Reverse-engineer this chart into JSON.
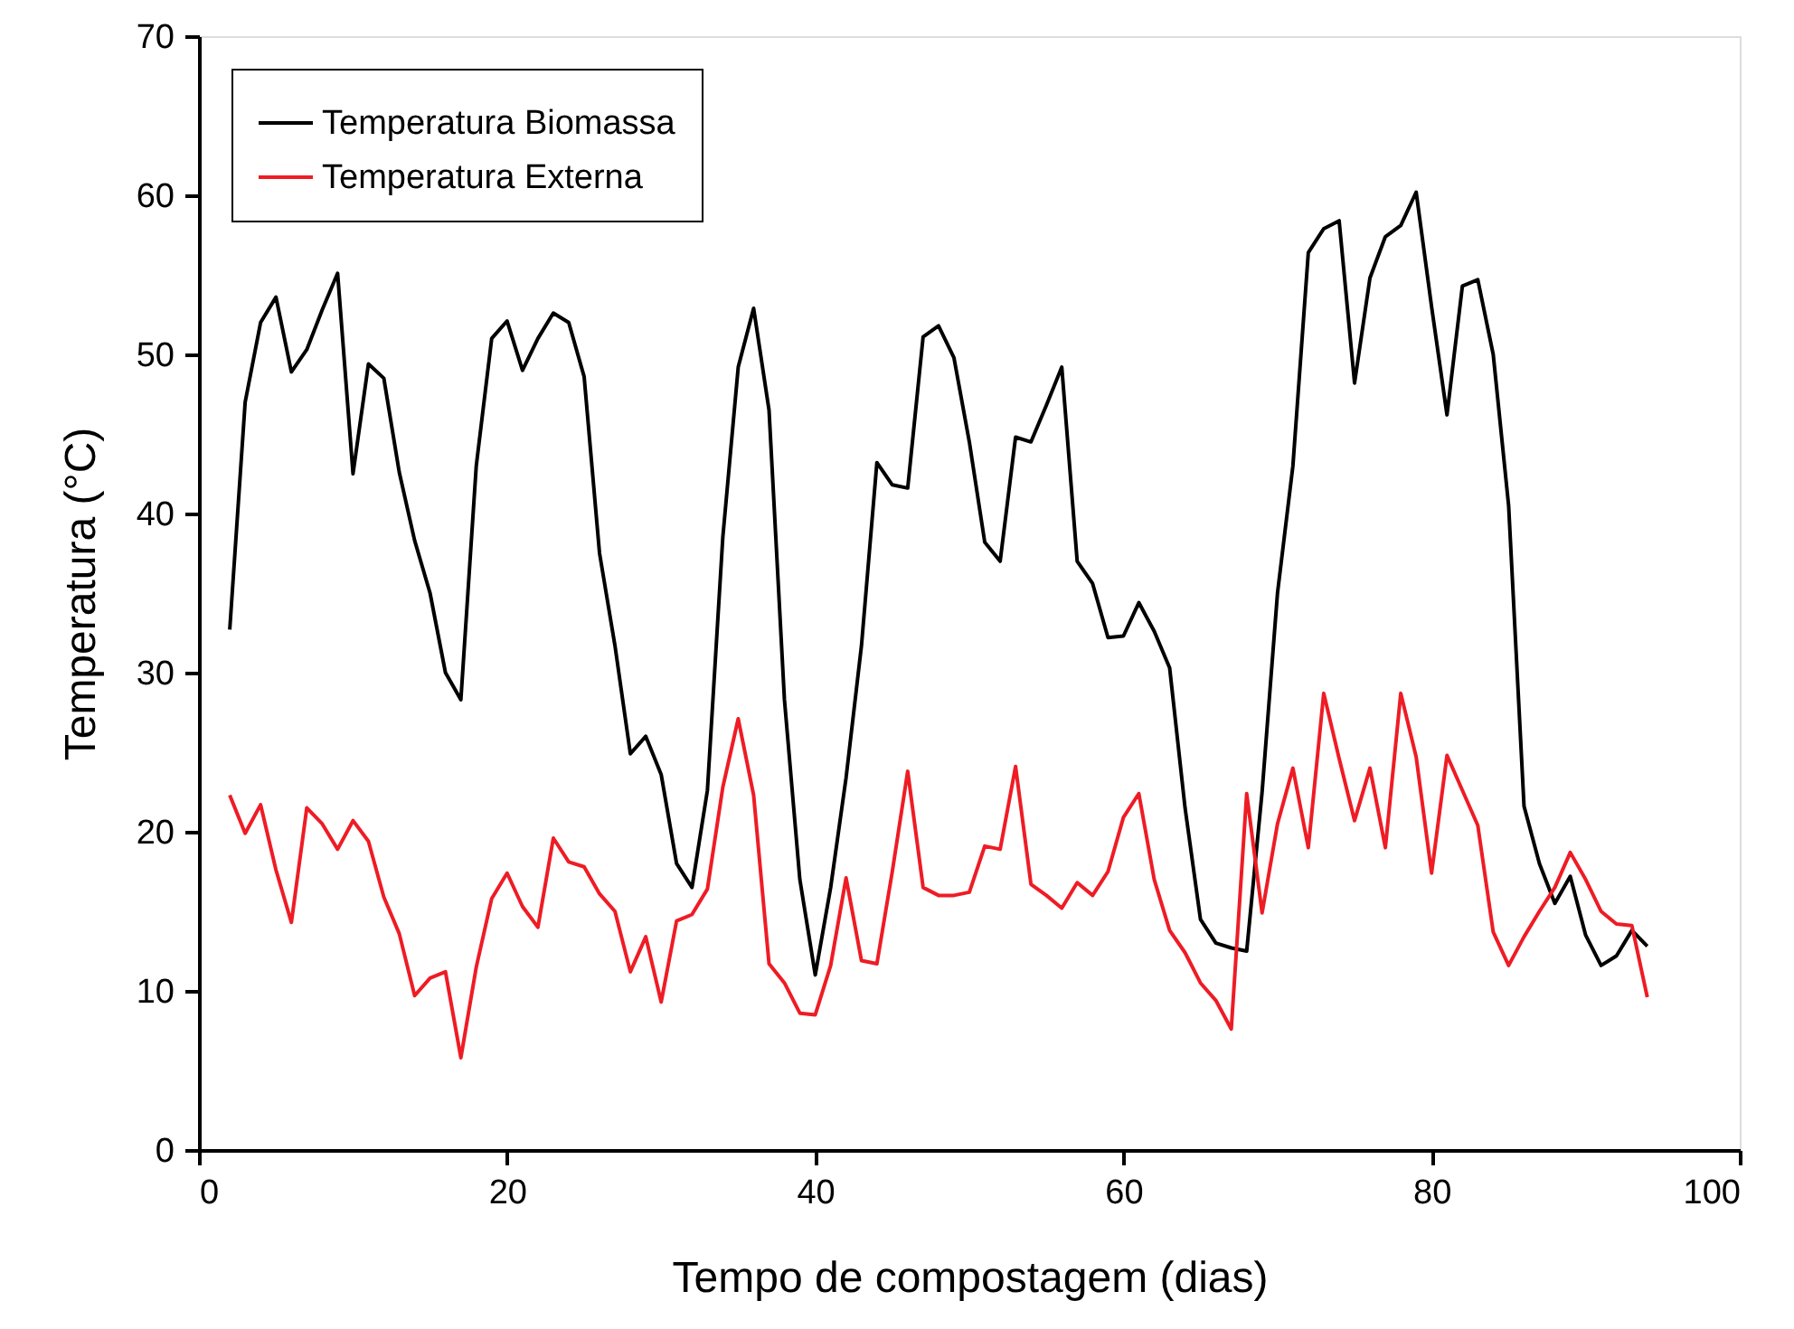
{
  "chart_data": {
    "type": "line",
    "xlabel": "Tempo de compostagem (dias)",
    "ylabel": "Temperatura (°C)",
    "x": [
      2,
      3,
      4,
      5,
      6,
      7,
      8,
      9,
      10,
      11,
      12,
      13,
      14,
      15,
      16,
      17,
      18,
      19,
      20,
      21,
      22,
      23,
      24,
      25,
      26,
      27,
      28,
      29,
      30,
      31,
      32,
      33,
      34,
      35,
      36,
      37,
      38,
      39,
      40,
      41,
      42,
      43,
      44,
      45,
      46,
      47,
      48,
      49,
      50,
      51,
      52,
      53,
      54,
      55,
      56,
      57,
      58,
      59,
      60,
      61,
      62,
      63,
      64,
      65,
      66,
      67,
      68,
      69,
      70,
      71,
      72,
      73,
      74,
      75,
      76,
      77,
      78,
      79,
      80,
      81,
      82,
      83,
      84,
      85,
      86,
      87,
      88,
      89,
      90,
      91,
      92,
      93,
      94
    ],
    "series": [
      {
        "name": "Temperatura Biomassa",
        "color": "#000000",
        "values": [
          32.7,
          47,
          52,
          53.6,
          48.9,
          50.3,
          52.8,
          55.1,
          42.5,
          49.4,
          48.5,
          42.6,
          38.3,
          35,
          30,
          28.3,
          43,
          51,
          52.1,
          49,
          51,
          52.6,
          52,
          48.6,
          37.5,
          31.7,
          24.9,
          26,
          23.6,
          18,
          16.5,
          22.6,
          38.5,
          49.2,
          52.9,
          46.5,
          28.3,
          17,
          11,
          16.5,
          23.4,
          31.7,
          43.2,
          41.8,
          41.6,
          51.1,
          51.8,
          49.8,
          44.5,
          38.2,
          37,
          44.8,
          44.5,
          46.8,
          49.2,
          37,
          35.6,
          32.2,
          32.3,
          34.4,
          32.6,
          30.3,
          21.5,
          14.5,
          13,
          12.7,
          12.5,
          22.5,
          35,
          43,
          56.4,
          57.9,
          58.4,
          48.2,
          54.8,
          57.4,
          58.1,
          60.2,
          53,
          46.2,
          54.3,
          54.7,
          50,
          40.5,
          21.6,
          18,
          15.5,
          17.2,
          13.5,
          11.6,
          12.2,
          13.8,
          12.8
        ]
      },
      {
        "name": "Temperatura Externa",
        "color": "#ee1c25",
        "values": [
          22.3,
          19.9,
          21.7,
          17.6,
          14.3,
          21.5,
          20.5,
          18.9,
          20.7,
          19.4,
          15.9,
          13.6,
          9.7,
          10.8,
          11.2,
          5.8,
          11.5,
          15.8,
          17.4,
          15.3,
          14,
          19.6,
          18.1,
          17.8,
          16.1,
          15,
          11.2,
          13.4,
          9.3,
          14.4,
          14.8,
          16.4,
          22.8,
          27.1,
          22.3,
          11.7,
          10.5,
          8.6,
          8.5,
          11.6,
          17.1,
          11.9,
          11.7,
          17.5,
          23.8,
          16.5,
          16,
          16,
          16.2,
          19.1,
          18.9,
          24.1,
          16.7,
          16,
          15.2,
          16.8,
          16,
          17.5,
          20.9,
          22.4,
          17,
          13.8,
          12.4,
          10.5,
          9.4,
          7.6,
          22.4,
          14.9,
          20.5,
          24,
          19,
          28.7,
          24.6,
          20.7,
          24,
          19,
          28.7,
          24.7,
          17.4,
          24.8,
          22.6,
          20.4,
          13.7,
          11.6,
          13.4,
          15,
          16.5,
          18.7,
          17,
          15,
          14.2,
          14.1,
          9.6
        ]
      }
    ],
    "xlim": [
      0,
      100
    ],
    "xticks": [
      0,
      20,
      40,
      60,
      80,
      100
    ],
    "ylim": [
      0,
      70
    ],
    "yticks": [
      0,
      10,
      20,
      30,
      40,
      50,
      60,
      70
    ],
    "grid": false,
    "legend": "top left",
    "marker": "none",
    "line_style": "solid"
  }
}
